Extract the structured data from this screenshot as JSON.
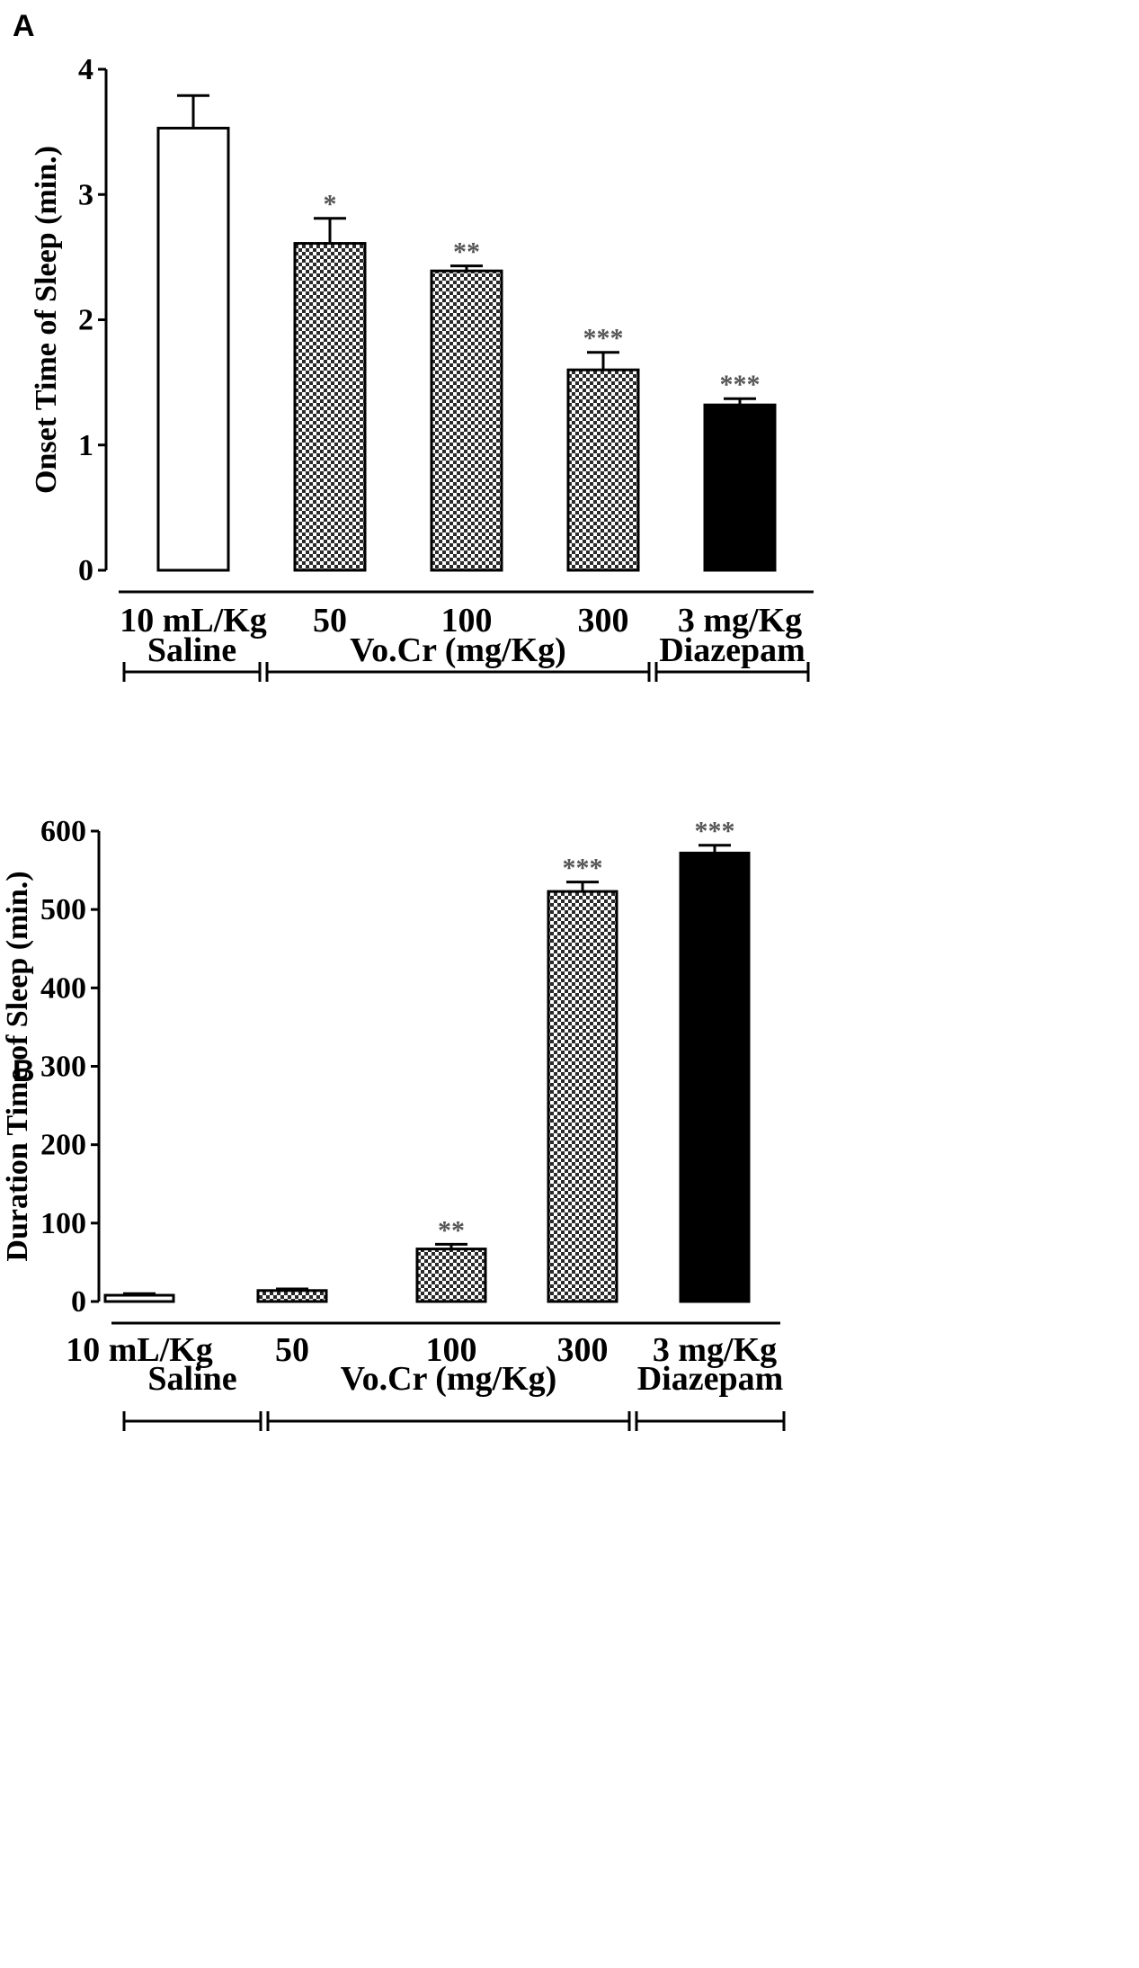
{
  "chart_data": [
    {
      "panel": "A",
      "type": "bar",
      "ylabel": "Onset Time of Sleep (min.)",
      "xlabel": "",
      "ylim": [
        0,
        4
      ],
      "yticks": [
        0,
        1,
        2,
        3,
        4
      ],
      "categories": [
        "10 mL/Kg",
        "50",
        "100",
        "300",
        "3 mg/Kg"
      ],
      "values": [
        3.53,
        2.61,
        2.39,
        1.6,
        1.32
      ],
      "errors": [
        0.26,
        0.2,
        0.04,
        0.14,
        0.05
      ],
      "significance": [
        "",
        "*",
        "**",
        "***",
        "***"
      ],
      "fills": [
        "white",
        "checker",
        "checker",
        "checker",
        "black"
      ],
      "groups": [
        {
          "label": "Saline",
          "from": 0,
          "to": 0
        },
        {
          "label": "Vo.Cr (mg/Kg)",
          "from": 1,
          "to": 3
        },
        {
          "label": "Diazepam",
          "from": 4,
          "to": 4
        }
      ]
    },
    {
      "panel": "B",
      "type": "bar",
      "ylabel": "Duration Time of Sleep (min.)",
      "xlabel": "",
      "ylim": [
        0,
        600
      ],
      "yticks": [
        0,
        100,
        200,
        300,
        400,
        500,
        600
      ],
      "categories": [
        "10 mL/Kg",
        "50",
        "100",
        "300",
        "3 mg/Kg"
      ],
      "values": [
        8,
        14,
        67,
        523,
        572
      ],
      "errors": [
        2,
        2,
        6,
        12,
        10
      ],
      "significance": [
        "",
        "",
        "**",
        "***",
        "***"
      ],
      "fills": [
        "white",
        "checker",
        "checker",
        "checker",
        "black"
      ],
      "groups": [
        {
          "label": "Saline",
          "from": 0,
          "to": 0
        },
        {
          "label": "Vo.Cr (mg/Kg)",
          "from": 1,
          "to": 3
        },
        {
          "label": "Diazepam",
          "from": 4,
          "to": 4
        }
      ]
    }
  ]
}
